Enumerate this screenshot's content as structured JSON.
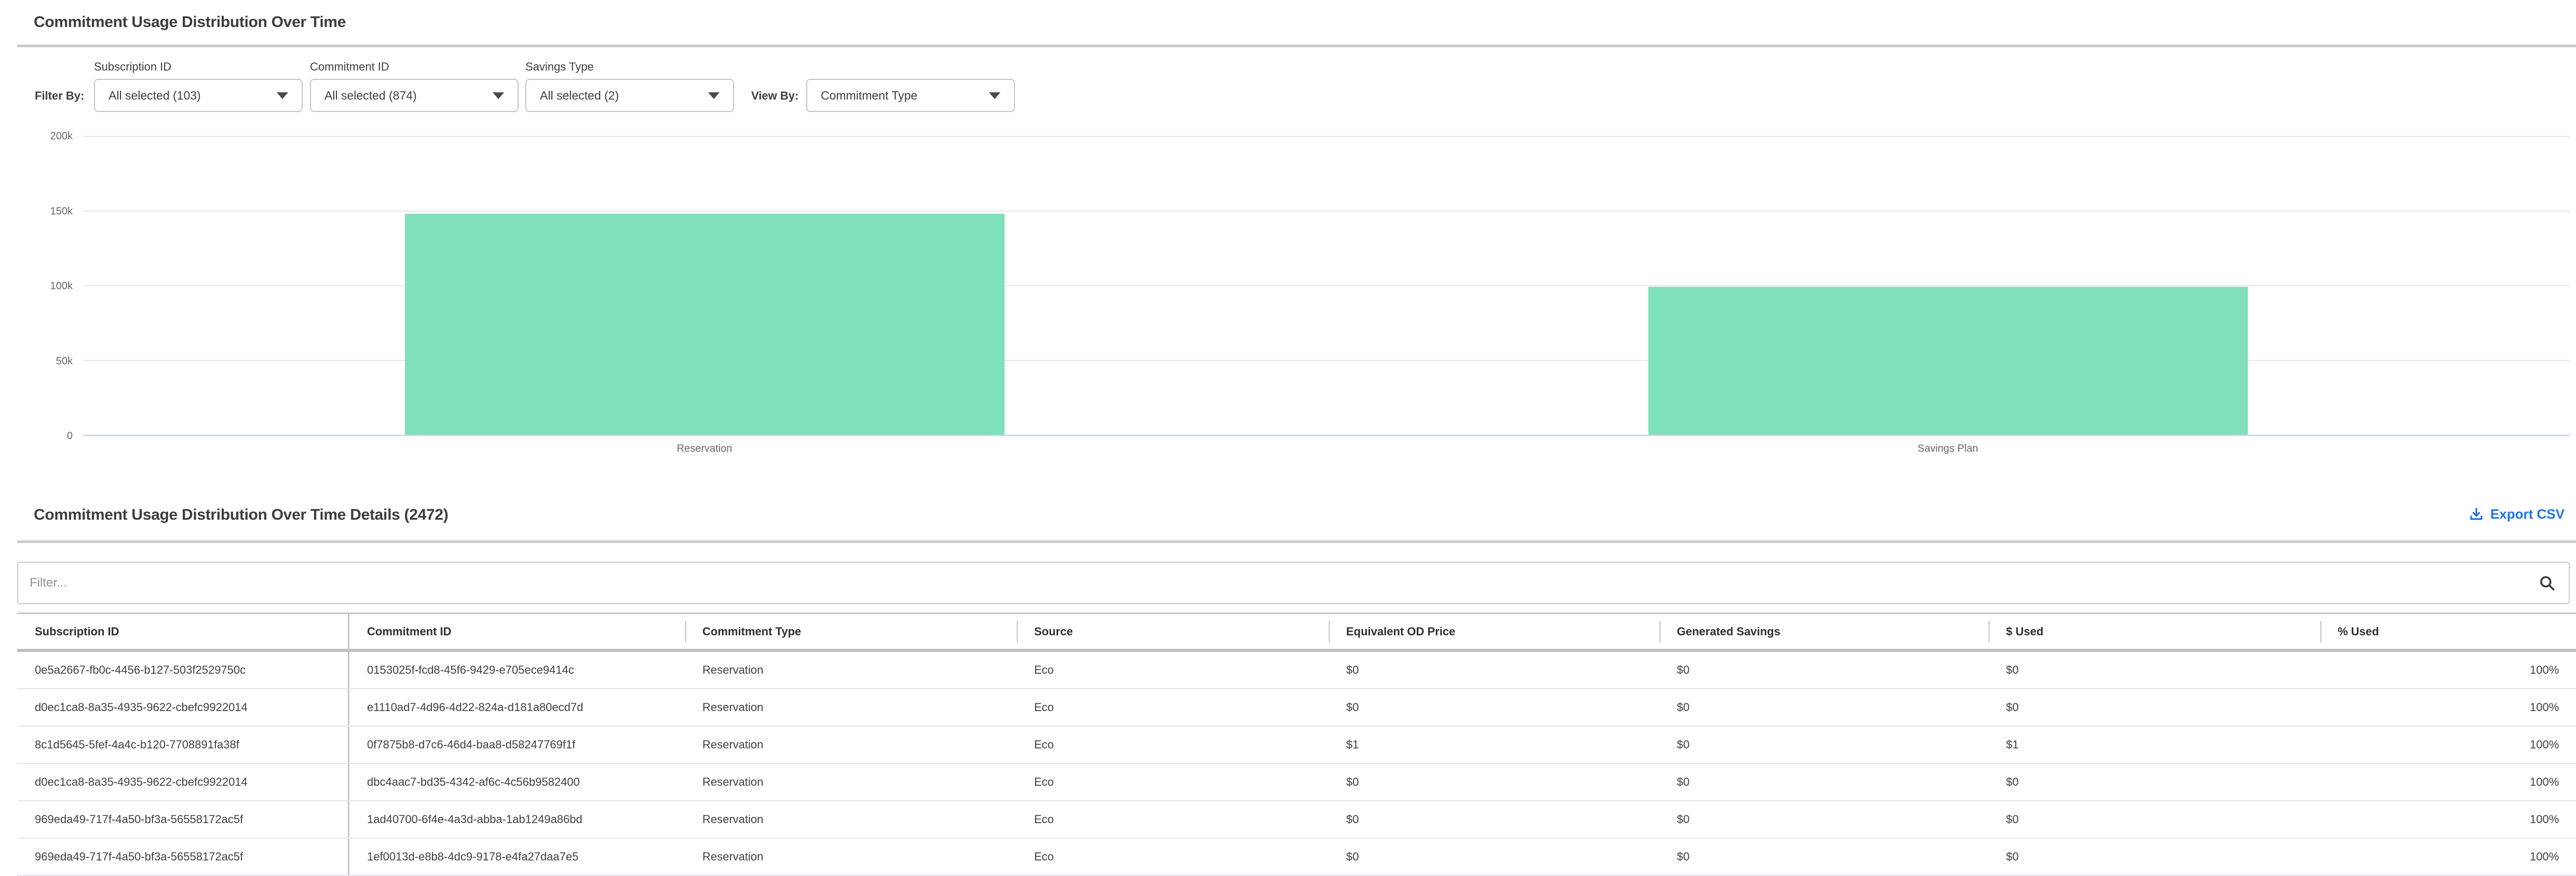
{
  "page": {
    "title": "Commitment Usage Distribution Over Time"
  },
  "filters": {
    "filter_by_label": "Filter By:",
    "view_by_label": "View By:",
    "dropdowns": [
      {
        "label": "Subscription ID",
        "value": "All selected (103)"
      },
      {
        "label": "Commitment ID",
        "value": "All selected (874)"
      },
      {
        "label": "Savings Type",
        "value": "All selected (2)"
      }
    ],
    "view_by": {
      "value": "Commitment Type"
    }
  },
  "chart_data": {
    "type": "bar",
    "title": "",
    "xlabel": "",
    "ylabel": "",
    "categories": [
      "Reservation",
      "Savings Plan"
    ],
    "values": [
      148000,
      99000
    ],
    "ylim": [
      0,
      200000
    ],
    "yticks": [
      "200k",
      "150k",
      "100k",
      "50k",
      "0"
    ],
    "grid": true,
    "legend": "none",
    "bar_color": "#80e0bc",
    "axis_line_color": "#ccd6eb",
    "gridline_color": "#e6e6e6"
  },
  "details": {
    "title": "Commitment Usage Distribution Over Time Details (2472)",
    "export_label": "Export CSV",
    "filter_placeholder": "Filter..."
  },
  "table": {
    "columns": [
      "Subscription ID",
      "Commitment ID",
      "Commitment Type",
      "Source",
      "Equivalent OD Price",
      "Generated Savings",
      "$ Used",
      "% Used"
    ],
    "rows": [
      {
        "subscription_id": "0e5a2667-fb0c-4456-b127-503f2529750c",
        "commitment_id": "0153025f-fcd8-45f6-9429-e705ece9414c",
        "commitment_type": "Reservation",
        "source": "Eco",
        "equivalent_od_price": "$0",
        "generated_savings": "$0",
        "used_dollars": "$0",
        "used_pct": "100%",
        "used_pct_value": 100
      },
      {
        "subscription_id": "d0ec1ca8-8a35-4935-9622-cbefc9922014",
        "commitment_id": "e1110ad7-4d96-4d22-824a-d181a80ecd7d",
        "commitment_type": "Reservation",
        "source": "Eco",
        "equivalent_od_price": "$0",
        "generated_savings": "$0",
        "used_dollars": "$0",
        "used_pct": "100%",
        "used_pct_value": 100
      },
      {
        "subscription_id": "8c1d5645-5fef-4a4c-b120-7708891fa38f",
        "commitment_id": "0f7875b8-d7c6-46d4-baa8-d58247769f1f",
        "commitment_type": "Reservation",
        "source": "Eco",
        "equivalent_od_price": "$1",
        "generated_savings": "$0",
        "used_dollars": "$1",
        "used_pct": "100%",
        "used_pct_value": 100
      },
      {
        "subscription_id": "d0ec1ca8-8a35-4935-9622-cbefc9922014",
        "commitment_id": "dbc4aac7-bd35-4342-af6c-4c56b9582400",
        "commitment_type": "Reservation",
        "source": "Eco",
        "equivalent_od_price": "$0",
        "generated_savings": "$0",
        "used_dollars": "$0",
        "used_pct": "100%",
        "used_pct_value": 100
      },
      {
        "subscription_id": "969eda49-717f-4a50-bf3a-56558172ac5f",
        "commitment_id": "1ad40700-6f4e-4a3d-abba-1ab1249a86bd",
        "commitment_type": "Reservation",
        "source": "Eco",
        "equivalent_od_price": "$0",
        "generated_savings": "$0",
        "used_dollars": "$0",
        "used_pct": "100%",
        "used_pct_value": 100
      },
      {
        "subscription_id": "969eda49-717f-4a50-bf3a-56558172ac5f",
        "commitment_id": "1ef0013d-e8b8-4dc9-9178-e4fa27daa7e5",
        "commitment_type": "Reservation",
        "source": "Eco",
        "equivalent_od_price": "$0",
        "generated_savings": "$0",
        "used_dollars": "$0",
        "used_pct": "100%",
        "used_pct_value": 100
      }
    ]
  },
  "colors": {
    "accent_blue": "#1d73e8",
    "progress_blue": "#1f7cf4",
    "bar_teal": "#80e0bc",
    "heading_text": "#3c3c3c",
    "divider_gray": "#c9c9c9"
  }
}
